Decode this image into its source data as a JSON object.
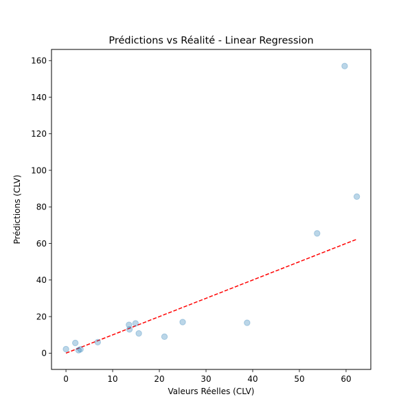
{
  "chart_data": {
    "type": "scatter",
    "title": "Prédictions vs Réalité - Linear Regression",
    "xlabel": "Valeurs Réelles (CLV)",
    "ylabel": "Prédictions (CLV)",
    "xlim": [
      -3.1,
      65.3
    ],
    "ylim": [
      -8.9,
      166.1
    ],
    "xticks": [
      0,
      10,
      20,
      30,
      40,
      50,
      60
    ],
    "yticks": [
      0,
      20,
      40,
      60,
      80,
      100,
      120,
      140,
      160
    ],
    "grid": false,
    "colors": {
      "points": "#1f77b4",
      "reference_line": "#ff0000"
    },
    "points": [
      {
        "x": 0.0,
        "y": 2.2
      },
      {
        "x": 2.0,
        "y": 5.6
      },
      {
        "x": 2.7,
        "y": 1.6
      },
      {
        "x": 3.1,
        "y": 2.1
      },
      {
        "x": 6.8,
        "y": 6.0
      },
      {
        "x": 13.5,
        "y": 15.5
      },
      {
        "x": 13.6,
        "y": 13.0
      },
      {
        "x": 14.9,
        "y": 16.3
      },
      {
        "x": 15.6,
        "y": 10.8
      },
      {
        "x": 21.1,
        "y": 9.0
      },
      {
        "x": 25.0,
        "y": 17.0
      },
      {
        "x": 38.8,
        "y": 16.6
      },
      {
        "x": 53.8,
        "y": 65.5
      },
      {
        "x": 59.7,
        "y": 157.0
      },
      {
        "x": 62.3,
        "y": 85.6
      }
    ],
    "reference_line": {
      "style": "dashed",
      "x": [
        0.0,
        62.3
      ],
      "y": [
        0.0,
        62.3
      ]
    }
  }
}
